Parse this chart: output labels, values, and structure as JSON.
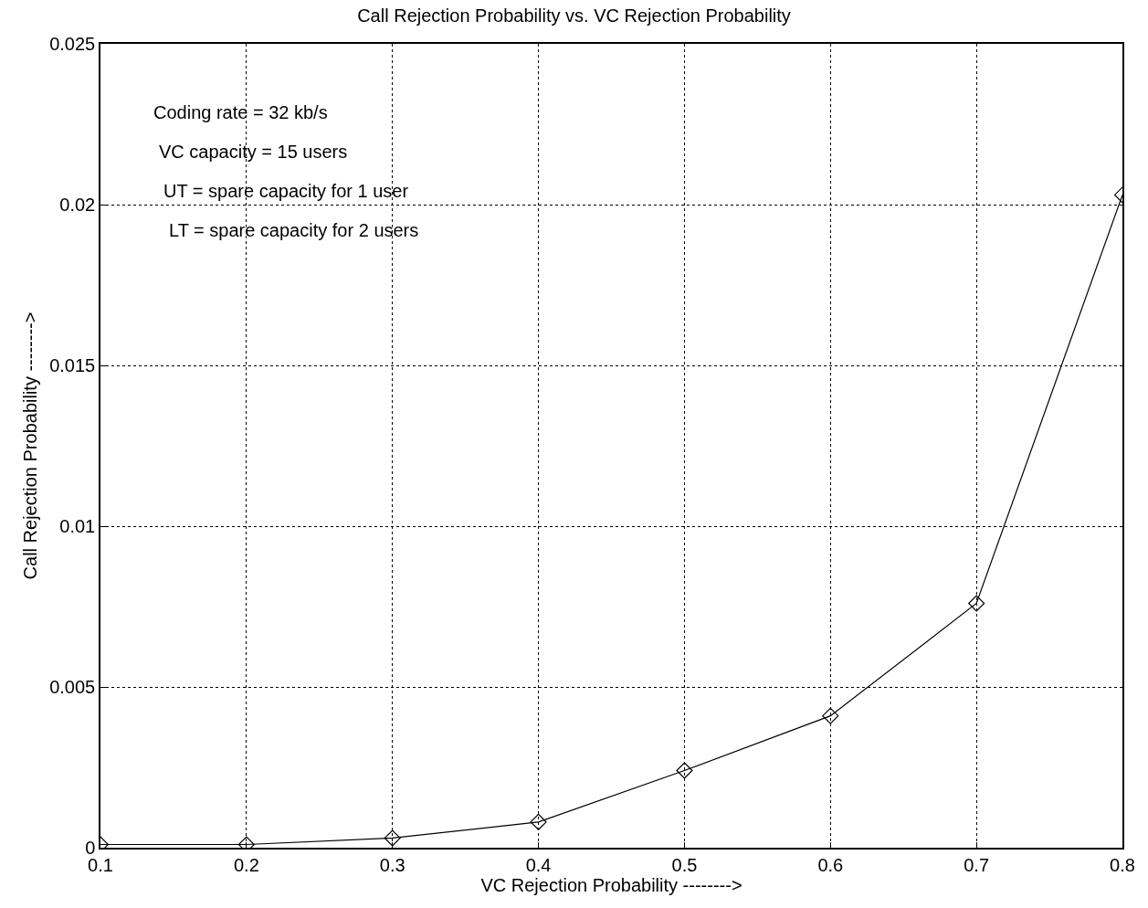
{
  "chart_data": {
    "type": "line",
    "title": "Call Rejection Probability vs. VC Rejection Probability",
    "xlabel": "VC Rejection Probability -------->",
    "ylabel": "Call Rejection Probability -------->",
    "x": [
      0.1,
      0.2,
      0.3,
      0.4,
      0.5,
      0.6,
      0.7,
      0.8
    ],
    "series": [
      {
        "color": "#000000",
        "values": [
          0.0001,
          0.0001,
          0.0003,
          0.0008,
          0.0024,
          0.0041,
          0.0076,
          0.0203
        ]
      }
    ],
    "xlim": [
      0.1,
      0.8
    ],
    "ylim": [
      0,
      0.025
    ],
    "xticks": [
      0.1,
      0.2,
      0.3,
      0.4,
      0.5,
      0.6,
      0.7,
      0.8
    ],
    "yticks": [
      0,
      0.005,
      0.01,
      0.015,
      0.02,
      0.025
    ],
    "grid": true,
    "marker": "diamond",
    "line_style": "solid",
    "annotations": [
      "Coding rate = 32 kb/s",
      "VC capacity = 15 users",
      "UT = spare capacity for 1 user",
      "LT = spare capacity for 2 users"
    ]
  }
}
